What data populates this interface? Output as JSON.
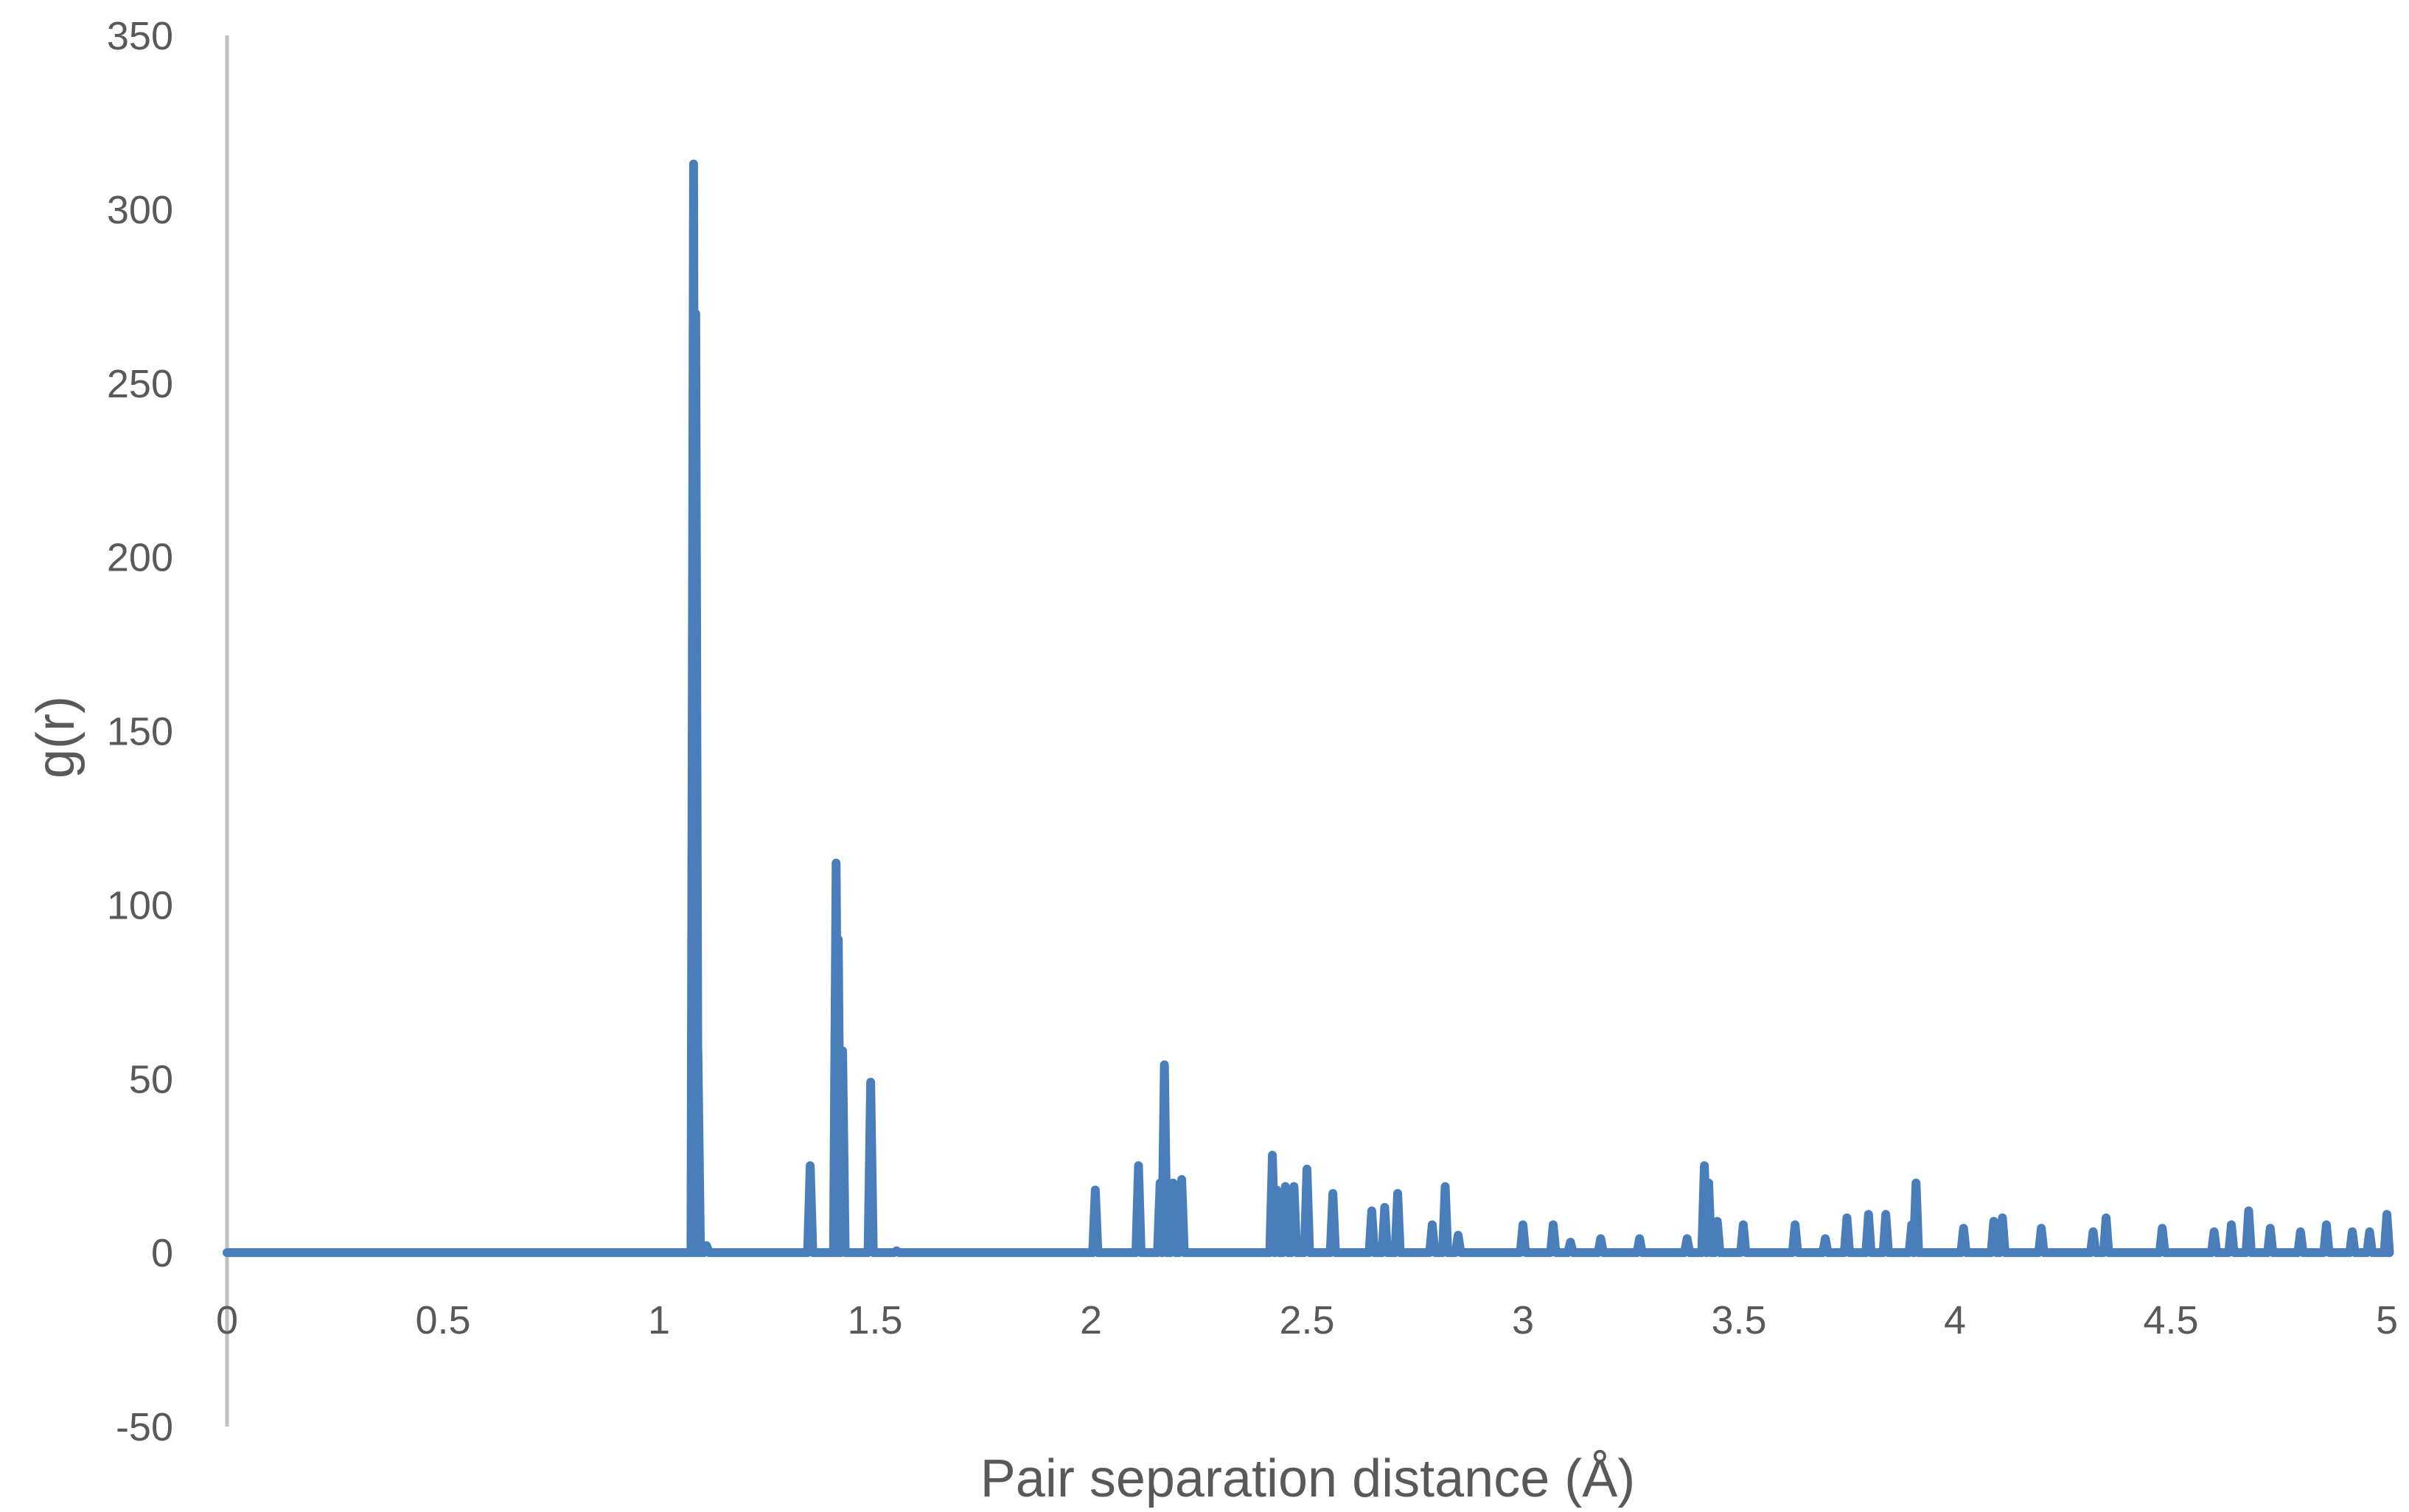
{
  "chart_data": {
    "type": "line",
    "title": "",
    "xlabel": "Pair separation distance (Å)",
    "ylabel": "g(r)",
    "xlim": [
      0,
      5
    ],
    "ylim": [
      -50,
      350
    ],
    "x_ticks": [
      "0",
      "0.5",
      "1",
      "1.5",
      "2",
      "2.5",
      "3",
      "3.5",
      "4",
      "4.5",
      "5"
    ],
    "y_ticks": [
      "350",
      "300",
      "250",
      "200",
      "150",
      "100",
      "50",
      "0",
      "-50"
    ],
    "grid": false,
    "legend": "none",
    "colors": {
      "series": "#4a7ebb",
      "axis": "#bfbfbf",
      "text": "#595959"
    },
    "series": [
      {
        "peaks": [
          {
            "x": 1.08,
            "y": 313
          },
          {
            "x": 1.085,
            "y": 270
          },
          {
            "x": 1.09,
            "y": 58
          },
          {
            "x": 1.11,
            "y": 2
          },
          {
            "x": 1.35,
            "y": 25
          },
          {
            "x": 1.41,
            "y": 112
          },
          {
            "x": 1.415,
            "y": 90
          },
          {
            "x": 1.425,
            "y": 58
          },
          {
            "x": 1.49,
            "y": 49
          },
          {
            "x": 1.55,
            "y": 0.5
          },
          {
            "x": 2.01,
            "y": 18
          },
          {
            "x": 2.11,
            "y": 25
          },
          {
            "x": 2.16,
            "y": 20
          },
          {
            "x": 2.17,
            "y": 54
          },
          {
            "x": 2.19,
            "y": 20
          },
          {
            "x": 2.21,
            "y": 21
          },
          {
            "x": 2.42,
            "y": 28
          },
          {
            "x": 2.43,
            "y": 18
          },
          {
            "x": 2.45,
            "y": 19
          },
          {
            "x": 2.47,
            "y": 19
          },
          {
            "x": 2.5,
            "y": 24
          },
          {
            "x": 2.56,
            "y": 17
          },
          {
            "x": 2.65,
            "y": 12
          },
          {
            "x": 2.68,
            "y": 13
          },
          {
            "x": 2.71,
            "y": 17
          },
          {
            "x": 2.79,
            "y": 8
          },
          {
            "x": 2.82,
            "y": 19
          },
          {
            "x": 2.85,
            "y": 5
          },
          {
            "x": 3.0,
            "y": 8
          },
          {
            "x": 3.07,
            "y": 8
          },
          {
            "x": 3.11,
            "y": 3
          },
          {
            "x": 3.18,
            "y": 4
          },
          {
            "x": 3.27,
            "y": 4
          },
          {
            "x": 3.38,
            "y": 4
          },
          {
            "x": 3.42,
            "y": 25
          },
          {
            "x": 3.43,
            "y": 20
          },
          {
            "x": 3.45,
            "y": 9
          },
          {
            "x": 3.51,
            "y": 8
          },
          {
            "x": 3.63,
            "y": 8
          },
          {
            "x": 3.7,
            "y": 4
          },
          {
            "x": 3.75,
            "y": 10
          },
          {
            "x": 3.8,
            "y": 11
          },
          {
            "x": 3.84,
            "y": 11
          },
          {
            "x": 3.9,
            "y": 8
          },
          {
            "x": 3.91,
            "y": 20
          },
          {
            "x": 4.02,
            "y": 7
          },
          {
            "x": 4.09,
            "y": 9
          },
          {
            "x": 4.11,
            "y": 10
          },
          {
            "x": 4.2,
            "y": 7
          },
          {
            "x": 4.32,
            "y": 6
          },
          {
            "x": 4.35,
            "y": 10
          },
          {
            "x": 4.48,
            "y": 7
          },
          {
            "x": 4.6,
            "y": 6
          },
          {
            "x": 4.64,
            "y": 8
          },
          {
            "x": 4.68,
            "y": 12
          },
          {
            "x": 4.73,
            "y": 7
          },
          {
            "x": 4.8,
            "y": 6
          },
          {
            "x": 4.86,
            "y": 8
          },
          {
            "x": 4.92,
            "y": 6
          },
          {
            "x": 4.96,
            "y": 6
          },
          {
            "x": 5.0,
            "y": 11
          }
        ]
      }
    ]
  }
}
